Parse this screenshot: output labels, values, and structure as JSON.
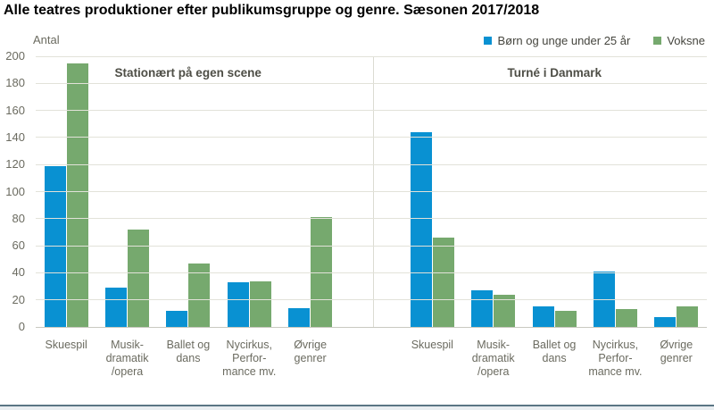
{
  "title": "Alle teatres produktioner efter publikumsgruppe og genre. Sæsonen 2017/2018",
  "legend": [
    {
      "label": "Børn og unge under 25 år",
      "color": "#0991D2"
    },
    {
      "label": "Voksne",
      "color": "#76A96E"
    }
  ],
  "chart_data": {
    "type": "bar",
    "title": "Alle teatres produktioner efter publikumsgruppe og genre. Sæsonen 2017/2018",
    "xlabel": "",
    "ylabel": "Antal",
    "ylim": [
      0,
      200
    ],
    "ytick_step": 20,
    "grid": true,
    "legend_position": "top-right",
    "colors": {
      "series_blue": "#0991D2",
      "series_green": "#76A96E",
      "gridline": "#E2E2D9",
      "axis_text": "#6B6B60"
    },
    "panels": [
      {
        "label": "Stationært på egen scene",
        "categories": [
          "Skuespil",
          "Musik-dramatik/opera",
          "Ballet og dans",
          "Nycirkus, Performance mv.",
          "Øvrige genrer"
        ],
        "category_lines": [
          [
            "Skuespil"
          ],
          [
            "Musik-",
            "dramatik",
            "/opera"
          ],
          [
            "Ballet og",
            "dans"
          ],
          [
            "Nycirkus,",
            "Perfor-",
            "mance mv."
          ],
          [
            "Øvrige",
            "genrer"
          ]
        ],
        "series": [
          {
            "name": "Børn og unge under 25 år",
            "color": "#0991D2",
            "values": [
              119,
              29,
              12,
              33,
              14
            ]
          },
          {
            "name": "Voksne",
            "color": "#76A96E",
            "values": [
              195,
              72,
              47,
              34,
              81
            ]
          }
        ]
      },
      {
        "label": "Turné i Danmark",
        "categories": [
          "Skuespil",
          "Musik-dramatik/opera",
          "Ballet og dans",
          "Nycirkus, Performance mv.",
          "Øvrige genrer"
        ],
        "category_lines": [
          [
            "Skuespil"
          ],
          [
            "Musik-",
            "dramatik",
            "/opera"
          ],
          [
            "Ballet og",
            "dans"
          ],
          [
            "Nycirkus,",
            "Perfor-",
            "mance mv."
          ],
          [
            "Øvrige",
            "genrer"
          ]
        ],
        "series": [
          {
            "name": "Børn og unge under 25 år",
            "color": "#0991D2",
            "values": [
              144,
              27,
              15,
              41,
              7
            ]
          },
          {
            "name": "Voksne",
            "color": "#76A96E",
            "values": [
              66,
              24,
              12,
              13,
              15
            ]
          }
        ]
      }
    ]
  }
}
